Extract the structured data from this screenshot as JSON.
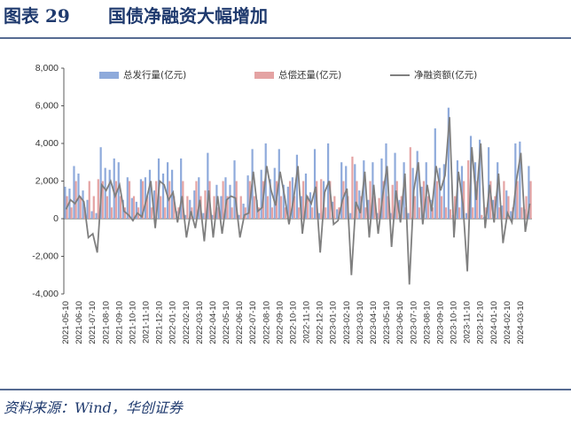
{
  "chart_data": {
    "type": "bar_line",
    "figure_label": "图表 29",
    "title": "国债净融资大幅增加",
    "source": "资料来源：Wind，华创证券",
    "categories": [
      "2021-05-10",
      null,
      null,
      "2021-06-10",
      null,
      null,
      "2021-07-10",
      null,
      null,
      "2021-08-10",
      null,
      null,
      "2021-09-10",
      null,
      null,
      "2021-10-10",
      null,
      null,
      "2021-11-10",
      null,
      null,
      "2021-12-10",
      null,
      null,
      "2022-01-10",
      null,
      null,
      "2022-02-10",
      null,
      null,
      "2022-03-10",
      null,
      null,
      "2022-04-10",
      null,
      null,
      "2022-05-10",
      null,
      null,
      "2022-06-10",
      null,
      null,
      "2022-07-10",
      null,
      null,
      "2022-08-10",
      null,
      null,
      "2022-09-10",
      null,
      null,
      "2022-10-10",
      null,
      null,
      "2022-11-10",
      null,
      null,
      "2022-12-10",
      null,
      null,
      "2023-01-10",
      null,
      null,
      "2023-02-10",
      null,
      null,
      "2023-03-10",
      null,
      null,
      "2023-04-10",
      null,
      null,
      "2023-05-10",
      null,
      null,
      "2023-06-10",
      null,
      null,
      "2023-07-10",
      null,
      null,
      "2023-08-10",
      null,
      null,
      "2023-09-10",
      null,
      null,
      "2023-10-10",
      null,
      null,
      "2023-11-10",
      null,
      null,
      "2023-12-10",
      null,
      null,
      "2024-01-10",
      null,
      null,
      "2024-02-10",
      null,
      null,
      "2024-03-10",
      null,
      null
    ],
    "series": [
      {
        "name": "总发行量(亿元)",
        "kind": "bar",
        "color": "#8eaadb",
        "values": [
          1700,
          1600,
          2800,
          2400,
          1500,
          1000,
          400,
          300,
          3800,
          2700,
          2600,
          3200,
          3000,
          1000,
          2200,
          1100,
          900,
          2100,
          2200,
          2600,
          1500,
          3200,
          2400,
          3000,
          2600,
          400,
          3200,
          200,
          1000,
          1500,
          2200,
          300,
          3500,
          200,
          1800,
          1200,
          2200,
          1800,
          3100,
          200,
          800,
          2300,
          3700,
          1000,
          2600,
          4000,
          2100,
          2700,
          3700,
          1800,
          1700,
          2200,
          3400,
          1200,
          2400,
          1400,
          3700,
          300,
          2000,
          4000,
          900,
          500,
          3000,
          2800,
          300,
          2900,
          1500,
          3100,
          1000,
          3000,
          300,
          3200,
          4000,
          300,
          3500,
          1000,
          3000,
          300,
          2700,
          3600,
          1700,
          3000,
          1000,
          4800,
          2700,
          2900,
          5900,
          200,
          3100,
          2800,
          300,
          4400,
          3000,
          4200,
          100,
          3800,
          1000,
          3000,
          700,
          1500,
          400,
          4000,
          4100,
          500,
          2800
        ]
      },
      {
        "name": "总偿还量(亿元)",
        "kind": "bar",
        "color": "#e4a3a3",
        "values": [
          1200,
          600,
          2000,
          1200,
          600,
          2000,
          1200,
          2100,
          2000,
          1200,
          600,
          2000,
          1200,
          600,
          2000,
          1200,
          600,
          2000,
          1200,
          600,
          2000,
          1200,
          600,
          2000,
          1200,
          600,
          2000,
          1200,
          600,
          2000,
          1200,
          1500,
          2000,
          1200,
          600,
          2000,
          1200,
          600,
          2000,
          1200,
          600,
          2000,
          1200,
          600,
          2000,
          1200,
          600,
          2000,
          1200,
          600,
          2000,
          1200,
          600,
          2000,
          1200,
          600,
          2000,
          2100,
          600,
          2000,
          1200,
          600,
          2000,
          1200,
          3300,
          2000,
          1200,
          600,
          2000,
          1200,
          1100,
          2000,
          1200,
          1800,
          2000,
          1200,
          600,
          3800,
          1200,
          600,
          2000,
          1200,
          600,
          2000,
          1200,
          600,
          500,
          1200,
          600,
          2000,
          3100,
          600,
          2000,
          200,
          600,
          2000,
          1200,
          600,
          2000,
          1200,
          600,
          2000,
          600,
          1200,
          2000
        ]
      },
      {
        "name": "净融资额(亿元)",
        "kind": "line",
        "color": "#7f7f7f",
        "values": [
          500,
          1000,
          800,
          1200,
          900,
          -1000,
          -800,
          -1800,
          1800,
          1500,
          2000,
          1200,
          1800,
          400,
          200,
          -100,
          300,
          100,
          1000,
          2000,
          -500,
          2000,
          1800,
          1000,
          1400,
          -200,
          1200,
          -1000,
          400,
          -500,
          1000,
          -1200,
          1500,
          -1000,
          1200,
          -800,
          1000,
          1200,
          1100,
          -1000,
          200,
          300,
          2500,
          400,
          600,
          2800,
          1500,
          700,
          2500,
          1200,
          -300,
          1000,
          2800,
          -800,
          1200,
          800,
          1700,
          -1800,
          1400,
          2000,
          -300,
          -100,
          1000,
          1600,
          -3000,
          900,
          300,
          2500,
          -1000,
          1800,
          -800,
          1200,
          2800,
          -1500,
          1500,
          -200,
          2400,
          -3500,
          1500,
          3000,
          -300,
          1800,
          400,
          2800,
          1500,
          2300,
          5400,
          -1000,
          2500,
          800,
          -2800,
          3800,
          1000,
          4000,
          -500,
          1800,
          -200,
          2400,
          -1300,
          300,
          -200,
          2000,
          3500,
          -700,
          800
        ]
      }
    ],
    "ylim": [
      -4000,
      8000
    ],
    "yticks": [
      {
        "value": -4000,
        "label": "-4,000"
      },
      {
        "value": -2000,
        "label": "-2,000"
      },
      0,
      {
        "value": 2000,
        "label": "2,000"
      },
      {
        "value": 4000,
        "label": "4,000"
      },
      {
        "value": 6000,
        "label": "6,000"
      },
      {
        "value": 8000,
        "label": "8,000"
      }
    ]
  }
}
